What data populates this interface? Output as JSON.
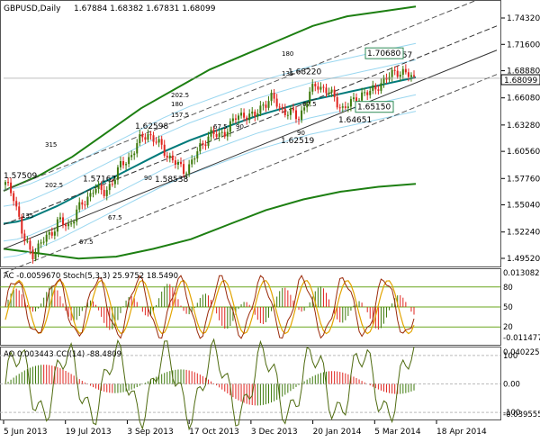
{
  "chart_data": {
    "type": "candlestick",
    "symbol_title": "GBPUSD,Daily",
    "ohlc_title": "1.67884 1.68382 1.67831 1.68099",
    "price_axis_labels": [
      "1.74320",
      "1.71600",
      "1.68880",
      "1.66080",
      "1.63280",
      "1.60560",
      "1.57760",
      "1.55040",
      "1.52240",
      "1.49520"
    ],
    "price_axis_values": [
      1.7432,
      1.716,
      1.6888,
      1.6608,
      1.6328,
      1.6056,
      1.5776,
      1.5504,
      1.5224,
      1.4952
    ],
    "current_price_label": "1.68099",
    "current_price": 1.68099,
    "x_labels": [
      "5 Jun 2013",
      "19 Jul 2013",
      "3 Sep 2013",
      "17 Oct 2013",
      "3 Dec 2013",
      "20 Jan 2014",
      "5 Mar 2014",
      "18 Apr 2014"
    ],
    "price_series": [
      1.571,
      1.56,
      1.515,
      1.5,
      1.51,
      1.52,
      1.535,
      1.526,
      1.545,
      1.552,
      1.571,
      1.56,
      1.575,
      1.59,
      1.6,
      1.615,
      1.625,
      1.615,
      1.605,
      1.595,
      1.585,
      1.595,
      1.61,
      1.625,
      1.62,
      1.63,
      1.64,
      1.645,
      1.64,
      1.655,
      1.66,
      1.65,
      1.645,
      1.64,
      1.66,
      1.675,
      1.67,
      1.66,
      1.65,
      1.655,
      1.665,
      1.665,
      1.675,
      1.68,
      1.69,
      1.685,
      1.681
    ],
    "moving_average": [
      1.531,
      1.533,
      1.537,
      1.543,
      1.549,
      1.556,
      1.563,
      1.57,
      1.577,
      1.584,
      1.591,
      1.598,
      1.605,
      1.611,
      1.617,
      1.622,
      1.627,
      1.632,
      1.637,
      1.642,
      1.646,
      1.65,
      1.654,
      1.658,
      1.661,
      1.664,
      1.667,
      1.67,
      1.673,
      1.676,
      1.679,
      1.682
    ],
    "bollinger_upper": [
      1.565,
      1.58,
      1.6,
      1.625,
      1.65,
      1.67,
      1.69,
      1.705,
      1.72,
      1.735,
      1.745,
      1.75,
      1.755
    ],
    "bollinger_lower": [
      1.505,
      1.5,
      1.495,
      1.497,
      1.505,
      1.515,
      1.53,
      1.545,
      1.556,
      1.564,
      1.569,
      1.572
    ],
    "level_labels": [
      {
        "text": "1.57509",
        "value": 1.57509
      },
      {
        "text": "1.57167",
        "value": 1.57167
      },
      {
        "text": "1.62598",
        "value": 1.62598
      },
      {
        "text": "1.58538",
        "value": 1.58538
      },
      {
        "text": "1.62519",
        "value": 1.62519
      },
      {
        "text": "1.68220",
        "value": 1.6822
      },
      {
        "text": "1.64651",
        "value": 1.64651
      },
      {
        "text": "1.69957",
        "value": 1.69957
      }
    ],
    "boxed_labels": [
      {
        "text": "1.70680",
        "value": 1.7068
      },
      {
        "text": "1.65150",
        "value": 1.6515
      }
    ],
    "fib_labels": [
      "315",
      "202.5",
      "135",
      "67.5",
      "67.5",
      "90",
      "202.5",
      "180",
      "157.5",
      "90",
      "67.5",
      "180",
      "135",
      "90",
      "67.5"
    ],
    "panel2": {
      "title": "AC -0.0059670  Stoch(5,3,3) 25.9752 18.5490",
      "y_labels": [
        "0.013082",
        "80",
        "50",
        "20",
        "-0.011477"
      ],
      "stoch_levels": [
        80,
        50,
        20
      ],
      "ac_range": [
        -0.011477,
        0.013082
      ]
    },
    "panel3": {
      "title": "AO 0.003443  CCI(14) -88.4809",
      "y_labels": [
        "0.040225",
        "100",
        "0.00",
        "-100",
        "-0.039555"
      ],
      "cci_levels": [
        100,
        -100
      ],
      "ao_range": [
        -0.039555,
        0.040225
      ]
    }
  },
  "colors": {
    "bull": "#3e7a0c",
    "bear": "#e0251f",
    "ma": "#007a7a",
    "outer_band": "#1d7f12",
    "inner_band": "#9ad7f0",
    "stoch_main": "#9a2a0a",
    "stoch_signal": "#e2a400",
    "cci": "#4f6b10",
    "grid": "#cfcfcf"
  }
}
